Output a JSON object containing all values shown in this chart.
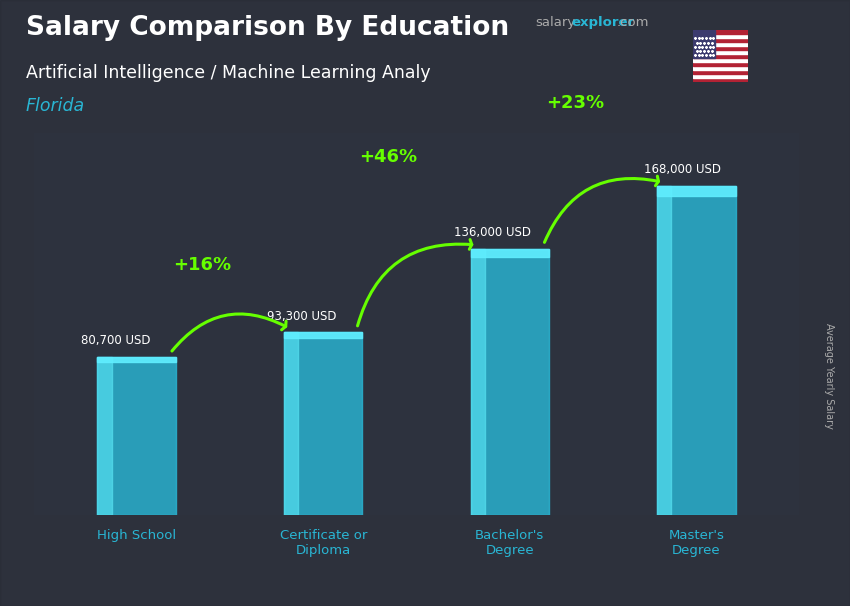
{
  "title_bold": "Salary Comparison By Education",
  "subtitle_line1": "Artificial Intelligence / Machine Learning Analy",
  "subtitle_line2": "Florida",
  "watermark_salary": "salary",
  "watermark_explorer": "explorer",
  "watermark_com": ".com",
  "ylabel": "Average Yearly Salary",
  "categories": [
    "High School",
    "Certificate or\nDiploma",
    "Bachelor's\nDegree",
    "Master's\nDegree"
  ],
  "values": [
    80700,
    93300,
    136000,
    168000
  ],
  "value_labels": [
    "80,700 USD",
    "93,300 USD",
    "136,000 USD",
    "168,000 USD"
  ],
  "arc_configs": [
    [
      0,
      80700,
      1,
      93300,
      "+16%"
    ],
    [
      1,
      93300,
      2,
      136000,
      "+46%"
    ],
    [
      2,
      136000,
      3,
      168000,
      "+23%"
    ]
  ],
  "bar_color": "#29b6d4",
  "bar_alpha": 0.82,
  "bar_left_highlight": "#55e0f0",
  "bar_top_highlight": "#60eeff",
  "background_color": "#3a4050",
  "title_color": "#ffffff",
  "subtitle_color": "#ffffff",
  "florida_color": "#29b6d4",
  "value_label_color": "#ffffff",
  "pct_color": "#66ff00",
  "arrow_color": "#66ff00",
  "watermark_salary_color": "#aaaaaa",
  "watermark_explorer_color": "#29b6d4",
  "watermark_com_color": "#aaaaaa",
  "xticklabel_color": "#29b6d4",
  "ylabel_color": "#aaaaaa",
  "ylim": [
    0,
    195000
  ],
  "xlim": [
    -0.55,
    3.55
  ],
  "fig_width": 8.5,
  "fig_height": 6.06,
  "bar_width": 0.42
}
